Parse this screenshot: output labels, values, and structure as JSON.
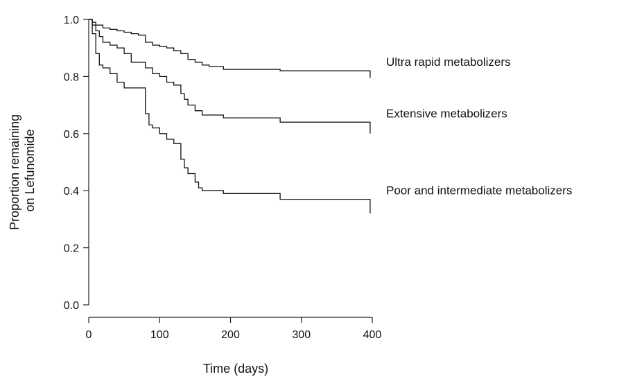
{
  "chart_data": {
    "type": "line",
    "step": true,
    "ylabel_lines": [
      "Proportion remaining",
      "on Lefunomide"
    ],
    "xlabel": "Time (days)",
    "xlim": [
      0,
      400
    ],
    "ylim": [
      0,
      1
    ],
    "x_ticks": [
      0,
      100,
      200,
      300,
      400
    ],
    "x_tick_labels": [
      "0",
      "100",
      "200",
      "300",
      "400"
    ],
    "y_ticks": [
      0,
      0.2,
      0.4,
      0.6,
      0.8,
      1.0
    ],
    "y_tick_labels": [
      "0.0",
      "0.2",
      "0.4",
      "0.6",
      "0.8",
      "1.0"
    ],
    "grid": false,
    "legend": "none",
    "series": [
      {
        "name": "Ultra rapid metabolizers",
        "x": [
          0,
          5,
          10,
          20,
          30,
          40,
          50,
          60,
          70,
          80,
          90,
          100,
          110,
          120,
          130,
          140,
          150,
          160,
          170,
          190,
          270,
          397
        ],
        "y": [
          1.0,
          0.99,
          0.98,
          0.97,
          0.965,
          0.96,
          0.955,
          0.95,
          0.945,
          0.92,
          0.91,
          0.905,
          0.9,
          0.89,
          0.88,
          0.86,
          0.85,
          0.84,
          0.835,
          0.825,
          0.82,
          0.795
        ]
      },
      {
        "name": "Extensive metabolizers",
        "x": [
          0,
          5,
          10,
          15,
          20,
          30,
          40,
          50,
          60,
          80,
          90,
          100,
          110,
          120,
          130,
          135,
          140,
          150,
          160,
          190,
          270,
          397
        ],
        "y": [
          1.0,
          0.98,
          0.96,
          0.94,
          0.92,
          0.91,
          0.9,
          0.88,
          0.85,
          0.83,
          0.81,
          0.8,
          0.78,
          0.77,
          0.74,
          0.72,
          0.7,
          0.68,
          0.665,
          0.655,
          0.64,
          0.6
        ]
      },
      {
        "name": "Poor and intermediate metabolizers",
        "x": [
          0,
          5,
          10,
          15,
          20,
          30,
          40,
          50,
          80,
          85,
          90,
          100,
          110,
          120,
          130,
          135,
          140,
          150,
          155,
          160,
          190,
          270,
          397
        ],
        "y": [
          1.0,
          0.95,
          0.88,
          0.84,
          0.83,
          0.81,
          0.78,
          0.76,
          0.67,
          0.63,
          0.62,
          0.6,
          0.58,
          0.565,
          0.51,
          0.48,
          0.46,
          0.43,
          0.41,
          0.4,
          0.39,
          0.37,
          0.32
        ]
      }
    ]
  }
}
